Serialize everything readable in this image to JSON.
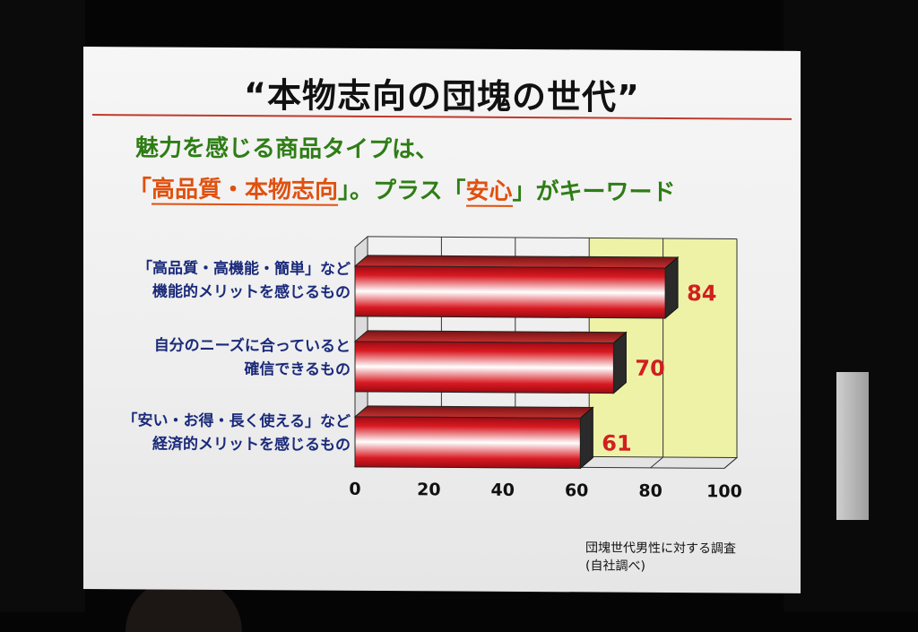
{
  "slide": {
    "title": "“本物志向の団塊の世代”",
    "subtitle_line1": "魅力を感じる商品タイプは、",
    "subtitle_line2_part1": "「",
    "subtitle_line2_hl1": "高品質・本物志向",
    "subtitle_line2_part2": "」。プラス「",
    "subtitle_line2_hl2": "安心",
    "subtitle_line2_part3": "」がキーワード",
    "footnote_line1": "団塊世代男性に対する調査",
    "footnote_line2": "(自社調べ)"
  },
  "colors": {
    "title": "#111111",
    "subtitle": "#2e7d15",
    "highlight": "#e0500e",
    "category_text": "#1a2a7a",
    "bar_red": "#c8141e",
    "value_text": "#d11f1f",
    "plot_highlight": "#eef2a6"
  },
  "chart_data": {
    "type": "bar",
    "orientation": "horizontal",
    "style": "3d",
    "categories": [
      [
        "「高品質・高機能・簡単」など",
        "機能的メリットを感じるもの"
      ],
      [
        "自分のニーズに合っていると",
        "確信できるもの"
      ],
      [
        "「安い・お得・長く使える」など",
        "経済的メリットを感じるもの"
      ]
    ],
    "values": [
      84,
      70,
      61
    ],
    "data_labels": [
      "84",
      "70",
      "61"
    ],
    "xlim": [
      0,
      100
    ],
    "xticks": [
      "0",
      "20",
      "40",
      "60",
      "80",
      "100"
    ],
    "grid": true
  }
}
